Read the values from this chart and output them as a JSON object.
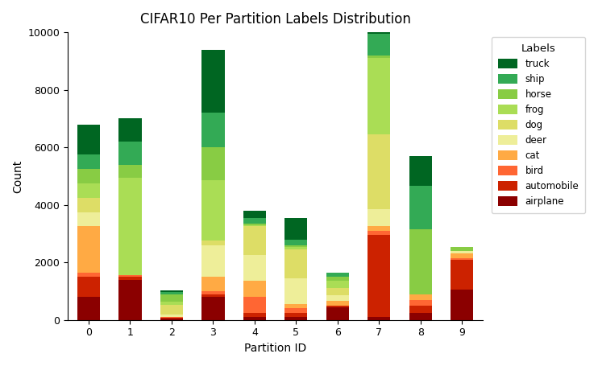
{
  "title": "CIFAR10 Per Partition Labels Distribution",
  "xlabel": "Partition ID",
  "ylabel": "Count",
  "ylim": [
    0,
    10000
  ],
  "partitions": [
    0,
    1,
    2,
    3,
    4,
    5,
    6,
    7,
    8,
    9
  ],
  "labels": [
    "airplane",
    "automobile",
    "bird",
    "cat",
    "deer",
    "dog",
    "frog",
    "horse",
    "ship",
    "truck"
  ],
  "colors": [
    "#8b0000",
    "#cc2200",
    "#ff6633",
    "#ffaa44",
    "#eeee99",
    "#dddd66",
    "#aadd55",
    "#88cc44",
    "#33aa55",
    "#006622"
  ],
  "data": {
    "airplane": [
      800,
      1400,
      50,
      800,
      100,
      100,
      450,
      100,
      250,
      1050
    ],
    "automobile": [
      700,
      100,
      30,
      100,
      150,
      150,
      50,
      2850,
      250,
      1050
    ],
    "bird": [
      150,
      50,
      20,
      100,
      550,
      150,
      0,
      150,
      200,
      50
    ],
    "cat": [
      1600,
      0,
      0,
      500,
      550,
      150,
      150,
      150,
      200,
      150
    ],
    "deer": [
      500,
      0,
      80,
      1100,
      900,
      900,
      200,
      600,
      0,
      100
    ],
    "dog": [
      500,
      0,
      350,
      150,
      1000,
      1000,
      250,
      2600,
      0,
      0
    ],
    "frog": [
      500,
      3400,
      100,
      2100,
      50,
      100,
      250,
      2650,
      0,
      0
    ],
    "horse": [
      500,
      450,
      250,
      1150,
      50,
      50,
      150,
      100,
      2250,
      150
    ],
    "ship": [
      500,
      800,
      80,
      1200,
      200,
      200,
      150,
      750,
      1500,
      0
    ],
    "truck": [
      1050,
      800,
      80,
      2200,
      250,
      750,
      0,
      750,
      1050,
      0
    ]
  }
}
